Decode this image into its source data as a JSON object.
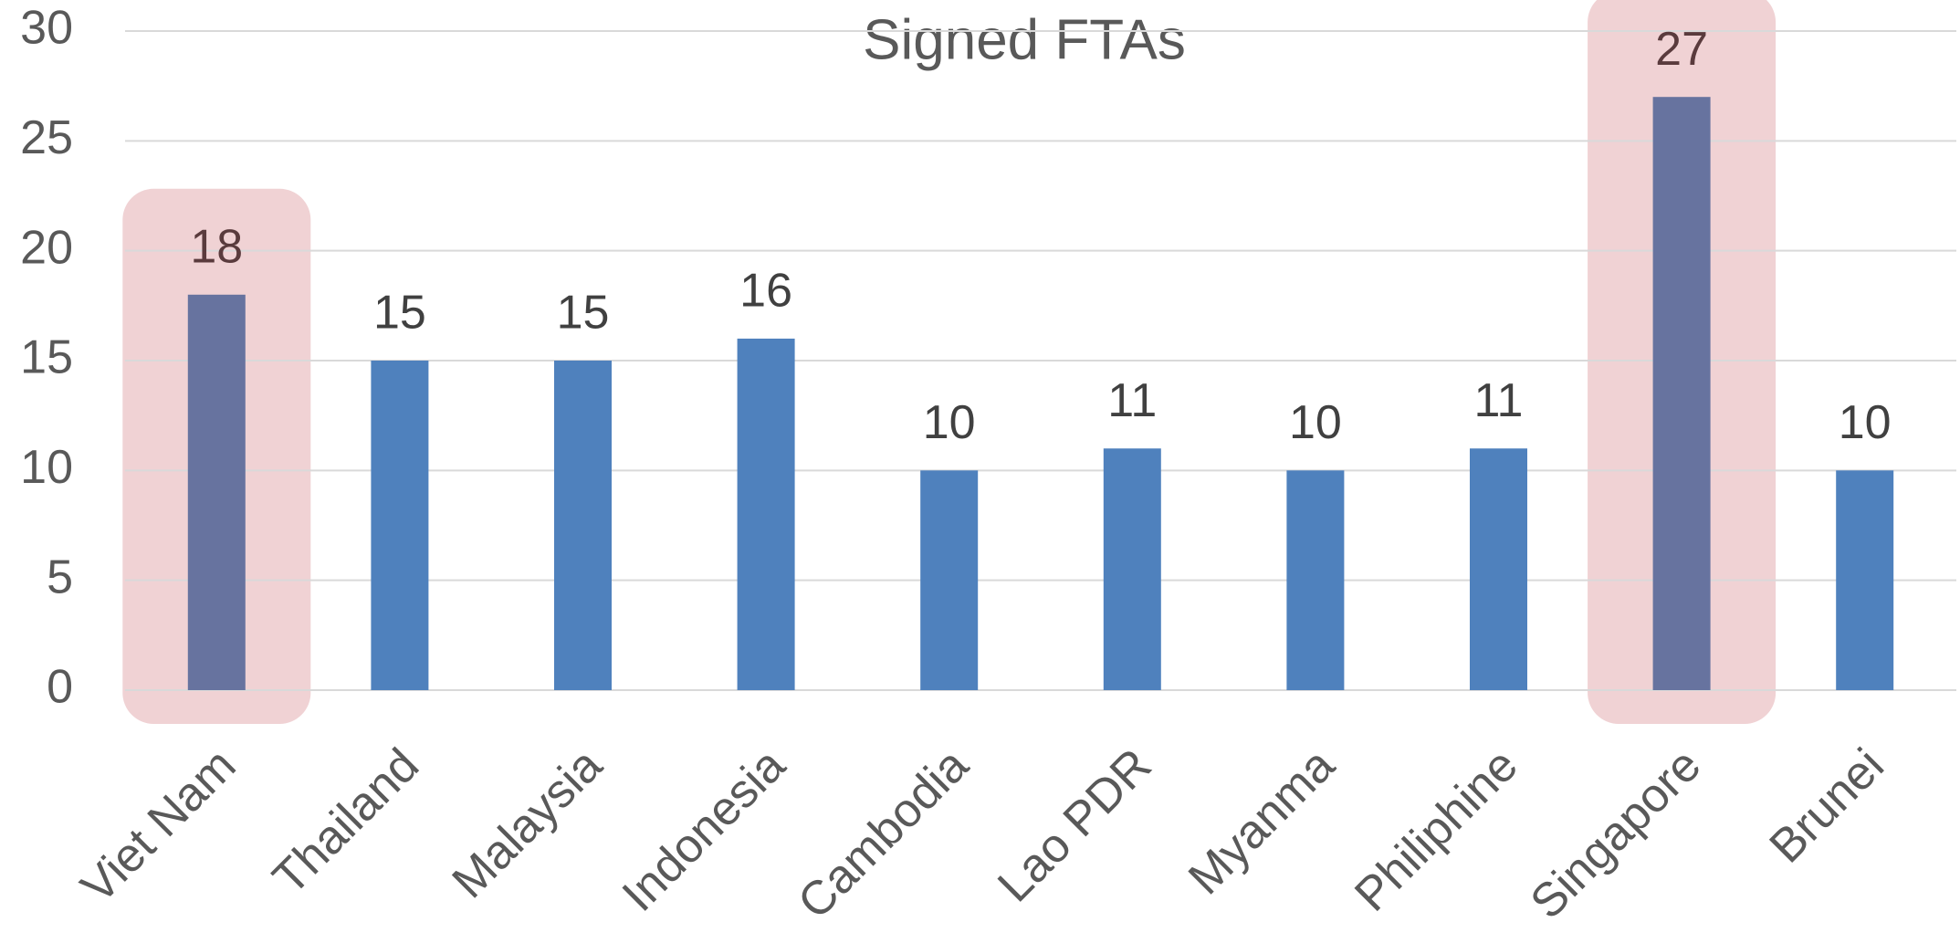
{
  "chart_data": {
    "type": "bar",
    "title": "Signed FTAs",
    "categories": [
      "Viet Nam",
      "Thailand",
      "Malaysia",
      "Indonesia",
      "Cambodia",
      "Lao PDR",
      "Myanma",
      "Philiphine",
      "Singapore",
      "Brunei"
    ],
    "values": [
      18,
      15,
      15,
      16,
      10,
      11,
      10,
      11,
      27,
      10
    ],
    "colors": [
      "#67739f",
      "#4f81bd",
      "#4f81bd",
      "#4f81bd",
      "#4f81bd",
      "#4f81bd",
      "#4f81bd",
      "#4f81bd",
      "#67739f",
      "#4f81bd"
    ],
    "highlighted": [
      true,
      false,
      false,
      false,
      false,
      false,
      false,
      false,
      true,
      false
    ],
    "highlight_color": "#f0d2d4",
    "ylim": [
      0,
      30
    ],
    "yticks": [
      0,
      5,
      10,
      15,
      20,
      25,
      30
    ],
    "grid": true
  }
}
